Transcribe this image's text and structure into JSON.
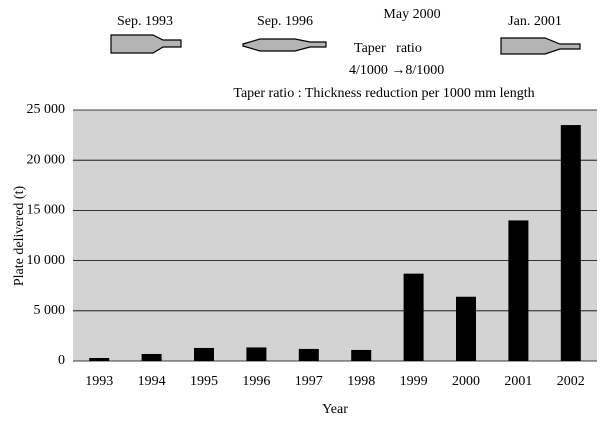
{
  "chart_data": {
    "type": "bar",
    "annotations": [
      "Sep. 1993",
      "Sep. 1996",
      "May 2000",
      "Taper   ratio",
      "4/1000 →8/1000",
      "Jan. 2001",
      "Taper ratio : Thickness reduction per 1000 mm length"
    ],
    "x_label": "Year",
    "y_label": "Plate delivered (t)",
    "categories": [
      "1993",
      "1994",
      "1995",
      "1996",
      "1997",
      "1998",
      "1999",
      "2000",
      "2001",
      "2002"
    ],
    "values": [
      300,
      700,
      1300,
      1350,
      1200,
      1100,
      8700,
      6400,
      14000,
      23500
    ],
    "color": "#000000",
    "background": "#d3d3d3",
    "ylim": [
      0,
      25000
    ],
    "yticks": [
      0,
      {
        "value": 5000,
        "label": "5 000"
      },
      {
        "value": 10000,
        "label": "10 000"
      },
      {
        "value": 15000,
        "label": "15 000"
      },
      {
        "value": 20000,
        "label": "20 000"
      },
      {
        "value": 25000,
        "label": "25 000"
      }
    ],
    "grid": true
  }
}
